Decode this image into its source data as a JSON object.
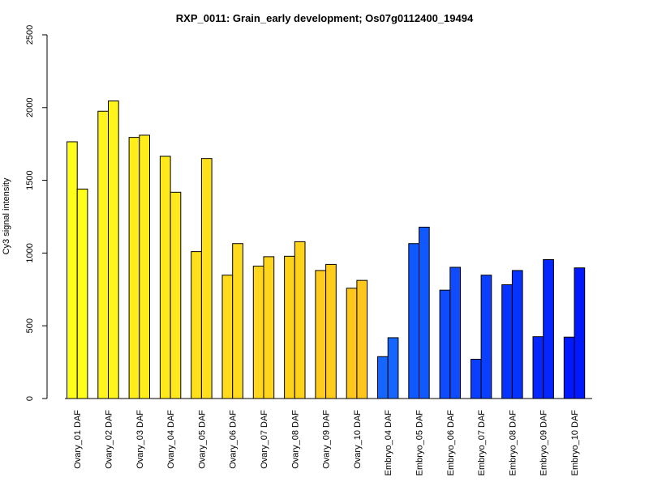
{
  "chart_data": {
    "type": "bar",
    "title": "RXP_0011: Grain_early development; Os07g0112400_19494",
    "xlabel": "",
    "ylabel": "Cy3 signal intensity",
    "ylim": [
      0,
      2500
    ],
    "yticks": [
      0,
      500,
      1000,
      1500,
      2000,
      2500
    ],
    "categories": [
      "Ovary_01 DAF",
      "Ovary_02 DAF",
      "Ovary_03 DAF",
      "Ovary_04 DAF",
      "Ovary_05 DAF",
      "Ovary_06 DAF",
      "Ovary_07 DAF",
      "Ovary_08 DAF",
      "Ovary_09 DAF",
      "Ovary_10 DAF",
      "Embryo_04 DAF",
      "Embryo_05 DAF",
      "Embryo_06 DAF",
      "Embryo_07 DAF",
      "Embryo_08 DAF",
      "Embryo_09 DAF",
      "Embryo_10 DAF"
    ],
    "series": [
      {
        "values": [
          1765,
          1975,
          1795,
          1665,
          1010,
          848,
          910,
          978,
          880,
          758,
          288,
          1065,
          745,
          270,
          782,
          425,
          422
        ]
      },
      {
        "values": [
          1440,
          2045,
          1810,
          1418,
          1650,
          1065,
          975,
          1078,
          922,
          812,
          418,
          1178,
          902,
          848,
          880,
          955,
          898
        ]
      }
    ],
    "category_colors": [
      "#ffff1a",
      "#fff51c",
      "#ffee1a",
      "#ffe81c",
      "#ffe01a",
      "#ffdb1c",
      "#ffd61c",
      "#ffd21a",
      "#ffcc1c",
      "#ffc61c",
      "#1466ff",
      "#0f59ff",
      "#0f4cff",
      "#0a3fff",
      "#0633ff",
      "#0526ff",
      "#0019ff"
    ],
    "grid": false,
    "legend": "none"
  }
}
